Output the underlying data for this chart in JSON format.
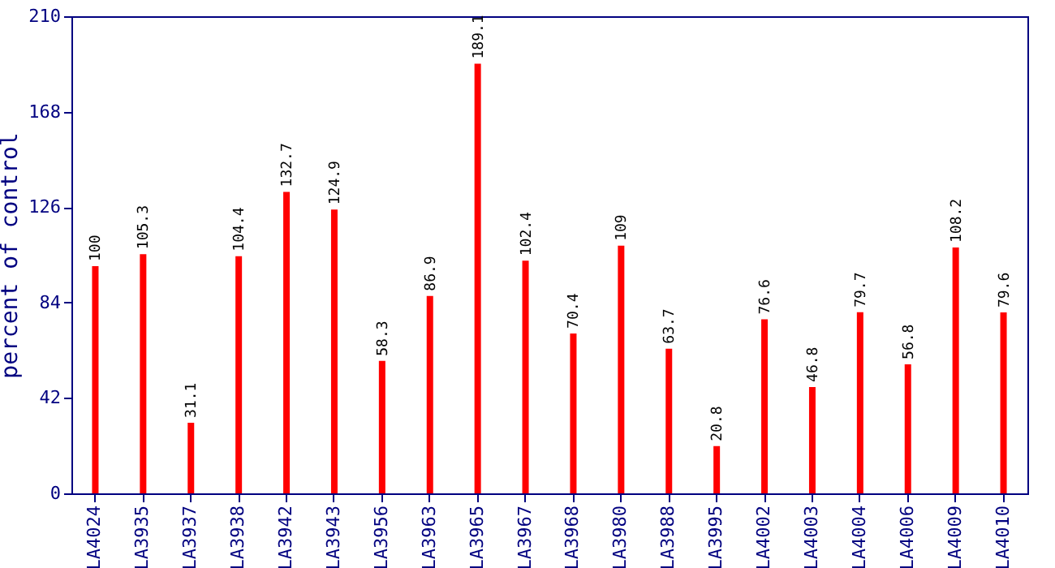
{
  "chart_data": {
    "type": "bar",
    "ylabel": "percent of control",
    "categories": [
      "LA4024",
      "LA3935",
      "LA3937",
      "LA3938",
      "LA3942",
      "LA3943",
      "LA3956",
      "LA3963",
      "LA3965",
      "LA3967",
      "LA3968",
      "LA3980",
      "LA3988",
      "LA3995",
      "LA4002",
      "LA4003",
      "LA4004",
      "LA4006",
      "LA4009",
      "LA4010"
    ],
    "values": [
      100,
      105.3,
      31.1,
      104.4,
      132.7,
      124.9,
      58.3,
      86.9,
      189.1,
      102.4,
      70.4,
      109,
      63.7,
      20.8,
      76.6,
      46.8,
      79.7,
      56.8,
      108.2,
      79.6
    ],
    "color": "#ff0000",
    "ylim": [
      0,
      210
    ],
    "yticks": [
      0,
      42,
      84,
      126,
      168,
      210
    ],
    "grid": false,
    "data_labels": true
  }
}
